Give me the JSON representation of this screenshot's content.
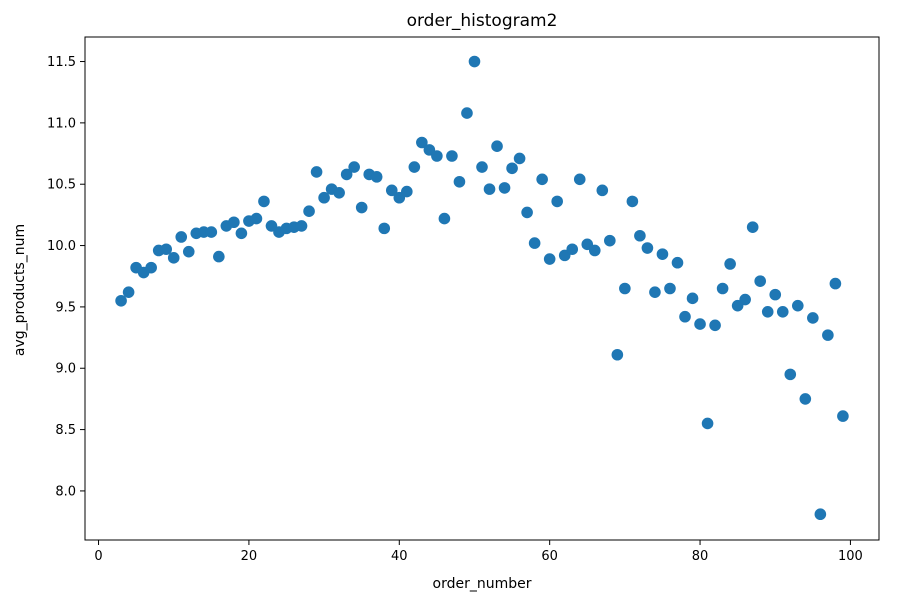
{
  "chart_data": {
    "type": "scatter",
    "title": "order_histogram2",
    "xlabel": "order_number",
    "ylabel": "avg_products_num",
    "xlim": [
      -1.8,
      103.8
    ],
    "ylim": [
      7.6,
      11.7
    ],
    "xticks": [
      0,
      20,
      40,
      60,
      80,
      100
    ],
    "yticks": [
      8.0,
      8.5,
      9.0,
      9.5,
      10.0,
      10.5,
      11.0,
      11.5
    ],
    "grid": false,
    "marker_color": "#1f77b4",
    "points": [
      [
        3,
        9.55
      ],
      [
        4,
        9.62
      ],
      [
        5,
        9.82
      ],
      [
        6,
        9.78
      ],
      [
        7,
        9.82
      ],
      [
        8,
        9.96
      ],
      [
        9,
        9.97
      ],
      [
        10,
        9.9
      ],
      [
        11,
        10.07
      ],
      [
        12,
        9.95
      ],
      [
        13,
        10.1
      ],
      [
        14,
        10.11
      ],
      [
        15,
        10.11
      ],
      [
        16,
        9.91
      ],
      [
        17,
        10.16
      ],
      [
        18,
        10.19
      ],
      [
        19,
        10.1
      ],
      [
        20,
        10.2
      ],
      [
        21,
        10.22
      ],
      [
        22,
        10.36
      ],
      [
        23,
        10.16
      ],
      [
        24,
        10.11
      ],
      [
        25,
        10.14
      ],
      [
        26,
        10.15
      ],
      [
        27,
        10.16
      ],
      [
        28,
        10.28
      ],
      [
        29,
        10.6
      ],
      [
        30,
        10.39
      ],
      [
        31,
        10.46
      ],
      [
        32,
        10.43
      ],
      [
        33,
        10.58
      ],
      [
        34,
        10.64
      ],
      [
        35,
        10.31
      ],
      [
        36,
        10.58
      ],
      [
        37,
        10.56
      ],
      [
        38,
        10.14
      ],
      [
        39,
        10.45
      ],
      [
        40,
        10.39
      ],
      [
        41,
        10.44
      ],
      [
        42,
        10.64
      ],
      [
        43,
        10.84
      ],
      [
        44,
        10.78
      ],
      [
        45,
        10.73
      ],
      [
        46,
        10.22
      ],
      [
        47,
        10.73
      ],
      [
        48,
        10.52
      ],
      [
        49,
        11.08
      ],
      [
        50,
        11.5
      ],
      [
        51,
        10.64
      ],
      [
        52,
        10.46
      ],
      [
        53,
        10.81
      ],
      [
        54,
        10.47
      ],
      [
        55,
        10.63
      ],
      [
        56,
        10.71
      ],
      [
        57,
        10.27
      ],
      [
        58,
        10.02
      ],
      [
        59,
        10.54
      ],
      [
        60,
        9.89
      ],
      [
        61,
        10.36
      ],
      [
        62,
        9.92
      ],
      [
        63,
        9.97
      ],
      [
        64,
        10.54
      ],
      [
        65,
        10.01
      ],
      [
        66,
        9.96
      ],
      [
        67,
        10.45
      ],
      [
        68,
        10.04
      ],
      [
        69,
        9.11
      ],
      [
        70,
        9.65
      ],
      [
        71,
        10.36
      ],
      [
        72,
        10.08
      ],
      [
        73,
        9.98
      ],
      [
        74,
        9.62
      ],
      [
        75,
        9.93
      ],
      [
        76,
        9.65
      ],
      [
        77,
        9.86
      ],
      [
        78,
        9.42
      ],
      [
        79,
        9.57
      ],
      [
        80,
        9.36
      ],
      [
        81,
        8.55
      ],
      [
        82,
        9.35
      ],
      [
        83,
        9.65
      ],
      [
        84,
        9.85
      ],
      [
        85,
        9.51
      ],
      [
        86,
        9.56
      ],
      [
        87,
        10.15
      ],
      [
        88,
        9.71
      ],
      [
        89,
        9.46
      ],
      [
        90,
        9.6
      ],
      [
        91,
        9.46
      ],
      [
        92,
        8.95
      ],
      [
        93,
        9.51
      ],
      [
        94,
        8.75
      ],
      [
        95,
        9.41
      ],
      [
        96,
        7.81
      ],
      [
        97,
        9.27
      ],
      [
        98,
        9.69
      ],
      [
        99,
        8.61
      ]
    ]
  }
}
